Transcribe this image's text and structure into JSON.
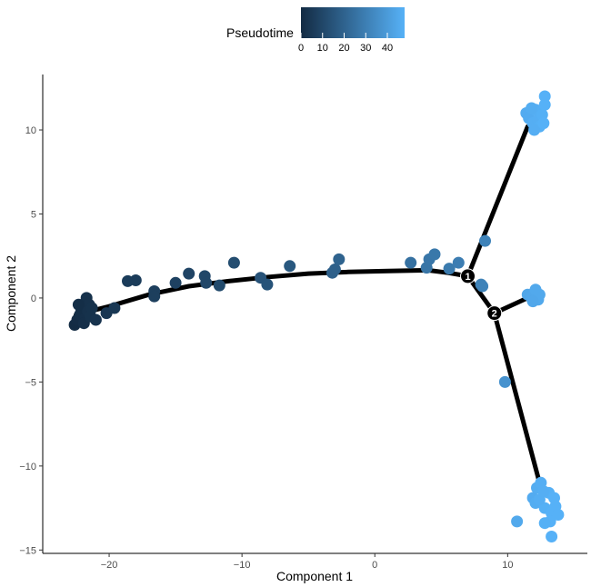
{
  "chart_data": {
    "type": "scatter",
    "title": "",
    "xlabel": "Component 1",
    "ylabel": "Component 2",
    "xlim": [
      -25,
      16
    ],
    "ylim": [
      -15.2,
      13.3
    ],
    "x_ticks": [
      -20,
      -10,
      0,
      10
    ],
    "x_tick_labels": [
      "−20",
      "−10",
      "0",
      "10"
    ],
    "y_ticks": [
      -15,
      -10,
      -5,
      0,
      5,
      10
    ],
    "y_tick_labels": [
      "−15",
      "−10",
      "−5",
      "0",
      "5",
      "10"
    ],
    "grid": false,
    "legend": {
      "title": "Pseudotime",
      "placement": "top",
      "range": [
        0,
        48
      ],
      "ticks": [
        0,
        10,
        20,
        30,
        40
      ],
      "tick_labels": [
        "0",
        "10",
        "20",
        "30",
        "40"
      ],
      "color_low": "#132b43",
      "color_high": "#56b1f7"
    },
    "trajectory": {
      "main_curve": [
        [
          -22.5,
          -1.0
        ],
        [
          -20,
          -0.5
        ],
        [
          -17,
          0.2
        ],
        [
          -14,
          0.7
        ],
        [
          -11,
          1.0
        ],
        [
          -8,
          1.25
        ],
        [
          -5,
          1.45
        ],
        [
          -2,
          1.55
        ],
        [
          1,
          1.6
        ],
        [
          4,
          1.65
        ],
        [
          5.5,
          1.5
        ],
        [
          7,
          1.3
        ]
      ],
      "branches": [
        [
          [
            7,
            1.3
          ],
          [
            11.5,
            10.2
          ]
        ],
        [
          [
            7,
            1.3
          ],
          [
            9,
            -0.9
          ]
        ],
        [
          [
            9,
            -0.9
          ],
          [
            11.5,
            0.0
          ]
        ],
        [
          [
            9,
            -0.9
          ],
          [
            12.5,
            -11.3
          ]
        ]
      ],
      "nodes": [
        {
          "label": "1",
          "x": 7.0,
          "y": 1.3
        },
        {
          "label": "2",
          "x": 9.0,
          "y": -0.9
        }
      ]
    },
    "points": [
      {
        "x": -22.6,
        "y": -1.6,
        "t": 0
      },
      {
        "x": -22.4,
        "y": -1.3,
        "t": 0.5
      },
      {
        "x": -22.2,
        "y": -1.0,
        "t": 1
      },
      {
        "x": -22.0,
        "y": -0.6,
        "t": 1
      },
      {
        "x": -21.8,
        "y": -0.3,
        "t": 1.5
      },
      {
        "x": -21.7,
        "y": 0.0,
        "t": 2
      },
      {
        "x": -21.9,
        "y": -0.5,
        "t": 1.5
      },
      {
        "x": -22.1,
        "y": -0.8,
        "t": 1
      },
      {
        "x": -21.5,
        "y": -0.4,
        "t": 2
      },
      {
        "x": -21.8,
        "y": -1.2,
        "t": 1.5
      },
      {
        "x": -22.3,
        "y": -0.4,
        "t": 1
      },
      {
        "x": -21.6,
        "y": -0.8,
        "t": 2
      },
      {
        "x": -21.3,
        "y": -0.6,
        "t": 2.5
      },
      {
        "x": -21.9,
        "y": -1.5,
        "t": 1.5
      },
      {
        "x": -21.4,
        "y": -1.1,
        "t": 2.5
      },
      {
        "x": -21.0,
        "y": -1.3,
        "t": 3
      },
      {
        "x": -20.2,
        "y": -0.9,
        "t": 4
      },
      {
        "x": -19.6,
        "y": -0.6,
        "t": 4.5
      },
      {
        "x": -18.6,
        "y": 1.0,
        "t": 6
      },
      {
        "x": -18.0,
        "y": 1.05,
        "t": 6
      },
      {
        "x": -16.6,
        "y": 0.4,
        "t": 7
      },
      {
        "x": -16.6,
        "y": 0.1,
        "t": 7
      },
      {
        "x": -15.0,
        "y": 0.9,
        "t": 8
      },
      {
        "x": -14.0,
        "y": 1.45,
        "t": 9
      },
      {
        "x": -12.8,
        "y": 1.3,
        "t": 10
      },
      {
        "x": -12.7,
        "y": 0.9,
        "t": 10
      },
      {
        "x": -11.7,
        "y": 0.75,
        "t": 11
      },
      {
        "x": -10.6,
        "y": 2.1,
        "t": 12
      },
      {
        "x": -8.6,
        "y": 1.2,
        "t": 14
      },
      {
        "x": -8.1,
        "y": 0.8,
        "t": 14.5
      },
      {
        "x": -6.4,
        "y": 1.9,
        "t": 16
      },
      {
        "x": -3.2,
        "y": 1.5,
        "t": 19
      },
      {
        "x": -3.0,
        "y": 1.7,
        "t": 19
      },
      {
        "x": -2.7,
        "y": 2.3,
        "t": 20
      },
      {
        "x": 2.7,
        "y": 2.1,
        "t": 25
      },
      {
        "x": 3.9,
        "y": 1.8,
        "t": 26.5
      },
      {
        "x": 4.1,
        "y": 2.3,
        "t": 27
      },
      {
        "x": 4.5,
        "y": 2.6,
        "t": 27.5
      },
      {
        "x": 5.6,
        "y": 1.75,
        "t": 28.5
      },
      {
        "x": 6.3,
        "y": 2.1,
        "t": 29.5
      },
      {
        "x": 8.0,
        "y": 0.8,
        "t": 31
      },
      {
        "x": 8.3,
        "y": 3.4,
        "t": 31.5
      },
      {
        "x": 8.1,
        "y": 0.7,
        "t": 31.5
      },
      {
        "x": 9.8,
        "y": -5.0,
        "t": 37
      },
      {
        "x": 11.4,
        "y": 11.0,
        "t": 46
      },
      {
        "x": 11.6,
        "y": 10.7,
        "t": 46
      },
      {
        "x": 11.9,
        "y": 10.4,
        "t": 47
      },
      {
        "x": 12.1,
        "y": 11.2,
        "t": 47
      },
      {
        "x": 12.3,
        "y": 10.6,
        "t": 47
      },
      {
        "x": 12.6,
        "y": 10.9,
        "t": 47.5
      },
      {
        "x": 12.4,
        "y": 10.2,
        "t": 47.5
      },
      {
        "x": 12.8,
        "y": 11.5,
        "t": 48
      },
      {
        "x": 12.0,
        "y": 10.0,
        "t": 47
      },
      {
        "x": 11.8,
        "y": 11.3,
        "t": 46.5
      },
      {
        "x": 12.7,
        "y": 10.4,
        "t": 48
      },
      {
        "x": 12.8,
        "y": 12.0,
        "t": 48
      },
      {
        "x": 11.5,
        "y": 0.2,
        "t": 44
      },
      {
        "x": 11.8,
        "y": 0.0,
        "t": 44.5
      },
      {
        "x": 12.0,
        "y": 0.3,
        "t": 44.5
      },
      {
        "x": 12.3,
        "y": -0.1,
        "t": 45
      },
      {
        "x": 12.4,
        "y": 0.2,
        "t": 45
      },
      {
        "x": 12.1,
        "y": 0.5,
        "t": 45
      },
      {
        "x": 11.9,
        "y": -0.2,
        "t": 44.5
      },
      {
        "x": 11.9,
        "y": -11.9,
        "t": 46
      },
      {
        "x": 12.2,
        "y": -11.3,
        "t": 46.5
      },
      {
        "x": 12.5,
        "y": -11.0,
        "t": 47
      },
      {
        "x": 12.1,
        "y": -12.2,
        "t": 46.5
      },
      {
        "x": 13.1,
        "y": -11.6,
        "t": 47.5
      },
      {
        "x": 13.5,
        "y": -11.9,
        "t": 48
      },
      {
        "x": 12.8,
        "y": -12.5,
        "t": 47.5
      },
      {
        "x": 13.3,
        "y": -12.8,
        "t": 48
      },
      {
        "x": 13.6,
        "y": -12.4,
        "t": 48
      },
      {
        "x": 13.2,
        "y": -13.3,
        "t": 48
      },
      {
        "x": 13.8,
        "y": -12.9,
        "t": 48
      },
      {
        "x": 12.4,
        "y": -12.0,
        "t": 47
      },
      {
        "x": 12.7,
        "y": -11.5,
        "t": 47
      },
      {
        "x": 12.8,
        "y": -13.4,
        "t": 47.5
      },
      {
        "x": 10.7,
        "y": -13.3,
        "t": 45
      },
      {
        "x": 13.3,
        "y": -14.2,
        "t": 48
      }
    ]
  }
}
